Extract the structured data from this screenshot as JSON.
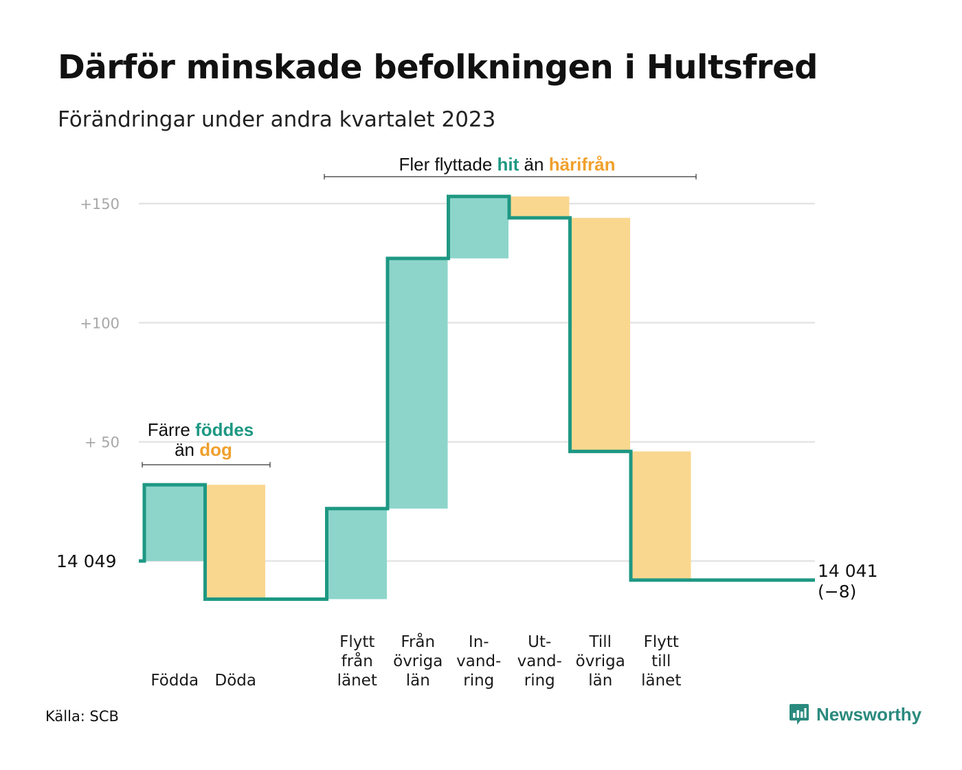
{
  "title": "Därför minskade befolkningen i Hultsfred",
  "subtitle": "Förändringar under andra kvartalet 2023",
  "source": "Källa: SCB",
  "brand": "Newsworthy",
  "colors": {
    "increase_fill": "#8dd5cb",
    "decrease_fill": "#fad78f",
    "line": "#1e9883",
    "grid": "#e4e4e4",
    "hit": "#1e9883",
    "harifran": "#f0a02c",
    "brand": "#2a8a7e"
  },
  "chart_data": {
    "type": "waterfall",
    "start_value": 14049,
    "start_label": "14  049",
    "end_value": 14041,
    "end_label": "14 041",
    "end_change_label": "(−8)",
    "y_axis": {
      "ylim": [
        -17,
        160
      ],
      "ticks": [
        0,
        50,
        100,
        150
      ],
      "tick_labels": [
        "+  50",
        "+100",
        "+150"
      ],
      "grid": true
    },
    "categories": [
      {
        "label": [
          "Födda"
        ],
        "value": 32
      },
      {
        "label": [
          "Döda"
        ],
        "value": -48
      },
      {
        "label": [],
        "value": 0
      },
      {
        "label": [
          "Flytt",
          "från",
          "länet"
        ],
        "value": 38
      },
      {
        "label": [
          "Från",
          "övriga",
          "län"
        ],
        "value": 105
      },
      {
        "label": [
          "In-",
          "vand-",
          "ring"
        ],
        "value": 26
      },
      {
        "label": [
          "Ut-",
          "vand-",
          "ring"
        ],
        "value": -9
      },
      {
        "label": [
          "Till",
          "övriga",
          "län"
        ],
        "value": -98
      },
      {
        "label": [
          "Flytt",
          "till",
          "länet"
        ],
        "value": -54
      },
      {
        "label": [],
        "value": 0
      }
    ],
    "annotations": [
      {
        "parts": [
          {
            "text": "Färre ",
            "style": "plain"
          },
          {
            "text": "föddes",
            "style": "hit"
          }
        ],
        "parts2": [
          {
            "text": "än ",
            "style": "plain"
          },
          {
            "text": "dog",
            "style": "harifran"
          }
        ]
      },
      {
        "parts": [
          {
            "text": "Fler flyttade ",
            "style": "plain"
          },
          {
            "text": "hit",
            "style": "hit"
          },
          {
            "text": "  än ",
            "style": "plain"
          },
          {
            "text": "härifrån",
            "style": "harifran"
          }
        ]
      }
    ]
  }
}
